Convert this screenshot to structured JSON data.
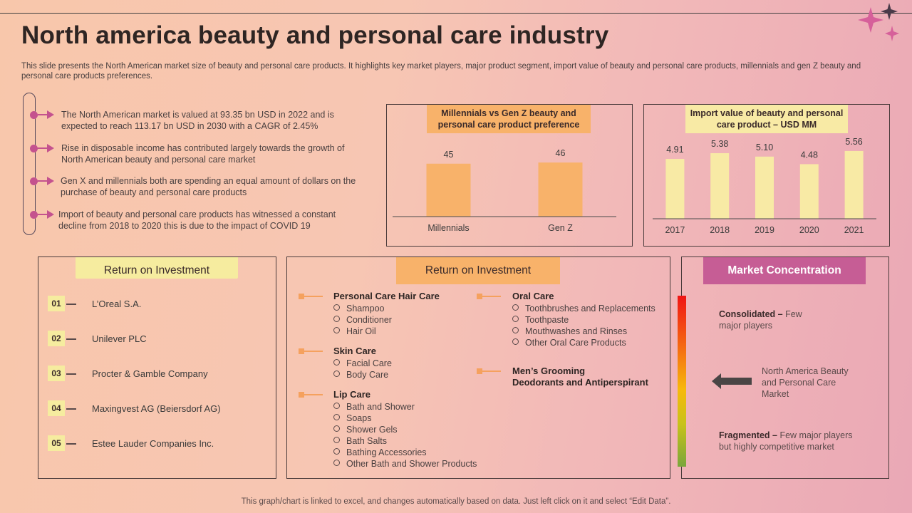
{
  "header": {
    "title": "North america beauty and personal care industry",
    "subtitle": "This slide presents the North American market size of beauty and personal care products. It highlights key market players, major product segment, import value of beauty and personal care products, millennials and gen Z beauty and personal care products preferences."
  },
  "bullets": [
    "The North American market is valued  at 93.35 bn USD in 2022 and is expected to reach 113.17 bn USD in 2030 with a CAGR of 2.45%",
    "Rise in disposable income has contributed largely towards the growth of North American beauty and personal care market",
    "Gen X and millennials both are spending an equal amount of dollars on the purchase of beauty and personal care products",
    "Import of beauty and personal care products has witnessed a constant decline from 2018 to 2020 this is due to the impact of COVID 19"
  ],
  "chart_data": [
    {
      "type": "bar",
      "title": "Millennials vs Gen Z beauty and personal care product preference",
      "categories": [
        "Millennials",
        "Gen Z"
      ],
      "values": [
        45,
        46
      ],
      "value_labels": [
        "45",
        "46"
      ],
      "ylim": [
        0,
        60
      ],
      "color": "#f8b26a"
    },
    {
      "type": "bar",
      "title": "Import value of beauty and personal care product – USD MM",
      "categories": [
        "2017",
        "2018",
        "2019",
        "2020",
        "2021"
      ],
      "values": [
        4.91,
        5.38,
        5.1,
        4.48,
        5.56
      ],
      "value_labels": [
        "4.91",
        "5.38",
        "5.10",
        "4.48",
        "5.56"
      ],
      "ylim": [
        0,
        6.2
      ],
      "color": "#f8eaa5"
    }
  ],
  "roi_players": {
    "title": "Return on Investment",
    "items": [
      {
        "num": "01",
        "name": "L’Oreal S.A."
      },
      {
        "num": "02",
        "name": "Unilever PLC"
      },
      {
        "num": "03",
        "name": "Procter & Gamble Company"
      },
      {
        "num": "04",
        "name": "Maxingvest AG (Beiersdorf AG)"
      },
      {
        "num": "05",
        "name": "Estee Lauder Companies Inc."
      }
    ]
  },
  "roi_segments": {
    "title": "Return on Investment",
    "left": [
      {
        "head": "Personal Care Hair Care",
        "items": [
          "Shampoo",
          "Conditioner",
          "Hair Oil"
        ]
      },
      {
        "head": "Skin Care",
        "items": [
          "Facial Care",
          "Body Care"
        ]
      },
      {
        "head": "Lip Care",
        "items": [
          "Bath and Shower",
          "Soaps",
          "Shower Gels",
          "Bath Salts",
          "Bathing Accessories",
          "Other Bath and Shower Products"
        ]
      }
    ],
    "right": [
      {
        "head": "Oral Care",
        "items": [
          "Toothbrushes  and Replacements",
          "Toothpaste",
          "Mouthwashes and Rinses",
          "Other Oral Care Products"
        ]
      },
      {
        "head": "Men’s Grooming\nDeodorants and Antiperspirant",
        "items": []
      }
    ]
  },
  "market_concentration": {
    "title": "Market Concentration",
    "consolidated_bold": "Consolidated – ",
    "consolidated_text": "Few major players",
    "market_label": "North America Beauty and Personal Care Market",
    "fragmented_bold": "Fragmented – ",
    "fragmented_text": "Few major players but highly competitive market"
  },
  "footer": "This graph/chart is linked to excel,  and changes automatically based on data. Just left click on it and select “Edit Data”."
}
